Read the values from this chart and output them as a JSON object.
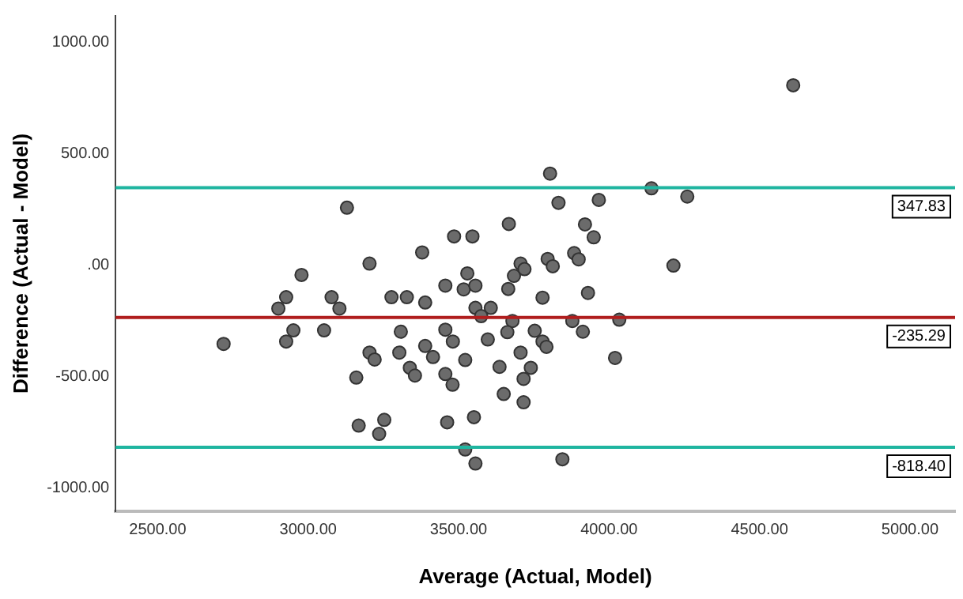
{
  "chart_data": {
    "type": "scatter",
    "xlabel": "Average (Actual, Model)",
    "ylabel": "Difference (Actual - Model)",
    "x": [
      3129,
      2978,
      3204,
      3379,
      3485,
      3546,
      3667,
      3529,
      3456,
      3517,
      3556,
      3665,
      3684,
      3706,
      3719,
      4612,
      3804,
      4141,
      4260,
      3832,
      3966,
      3920,
      3949,
      3884,
      3899,
      3796,
      3813,
      4214,
      3930,
      2719,
      2901,
      2927,
      2951,
      2927,
      3053,
      3078,
      3104,
      3277,
      3328,
      3389,
      3556,
      3607,
      3575,
      3679,
      3779,
      3308,
      3456,
      3481,
      3597,
      3662,
      3753,
      3779,
      3204,
      3221,
      3303,
      3389,
      3415,
      3522,
      3706,
      3338,
      3355,
      3456,
      3480,
      3636,
      3740,
      3716,
      3160,
      3650,
      3716,
      3168,
      3253,
      3236,
      3462,
      3551,
      3522,
      3556,
      3792,
      3878,
      3913,
      4034,
      4020,
      3845
    ],
    "values": [
      258,
      -44,
      7,
      57,
      129,
      129,
      185,
      -37,
      -92,
      -109,
      -92,
      -107,
      -48,
      7,
      -18,
      808,
      411,
      345,
      308,
      280,
      293,
      183,
      125,
      54,
      26,
      28,
      -5,
      -2,
      -125,
      -354,
      -195,
      -144,
      -293,
      -343,
      -293,
      -144,
      -195,
      -144,
      -144,
      -168,
      -192,
      -192,
      -229,
      -251,
      -146,
      -299,
      -290,
      -343,
      -334,
      -301,
      -295,
      -343,
      -393,
      -424,
      -393,
      -363,
      -413,
      -426,
      -393,
      -461,
      -496,
      -489,
      -537,
      -457,
      -461,
      -511,
      -505,
      -579,
      -616,
      -721,
      -695,
      -758,
      -706,
      -683,
      -828,
      -891,
      -367,
      -251,
      -299,
      -245,
      -417,
      -872
    ],
    "color": "#6b6b6b",
    "marker": "circle",
    "xlim": [
      2360,
      5150
    ],
    "xticks": [
      {
        "value": 2500,
        "label": "2500.00"
      },
      {
        "value": 3000,
        "label": "3000.00"
      },
      {
        "value": 3500,
        "label": "3500.00"
      },
      {
        "value": 4000,
        "label": "4000.00"
      },
      {
        "value": 4500,
        "label": "4500.00"
      },
      {
        "value": 5000,
        "label": "5000.00"
      }
    ],
    "ylim": [
      -1105,
      1120
    ],
    "yticks": [
      {
        "value": -1000,
        "label": "-1000.00"
      },
      {
        "value": -500,
        "label": "-500.00"
      },
      {
        "value": 0,
        "label": ".00"
      },
      {
        "value": 500,
        "label": "500.00"
      },
      {
        "value": 1000,
        "label": "1000.00"
      }
    ],
    "ref_lines": [
      {
        "axis": "y",
        "value": 347.83,
        "label": "347.83",
        "color": "#1fb5a0"
      },
      {
        "axis": "y",
        "value": -235.29,
        "label": "-235.29",
        "color": "#b01e1e"
      },
      {
        "axis": "y",
        "value": -818.4,
        "label": "-818.40",
        "color": "#1fb5a0"
      }
    ],
    "grid": false,
    "legend": false
  }
}
